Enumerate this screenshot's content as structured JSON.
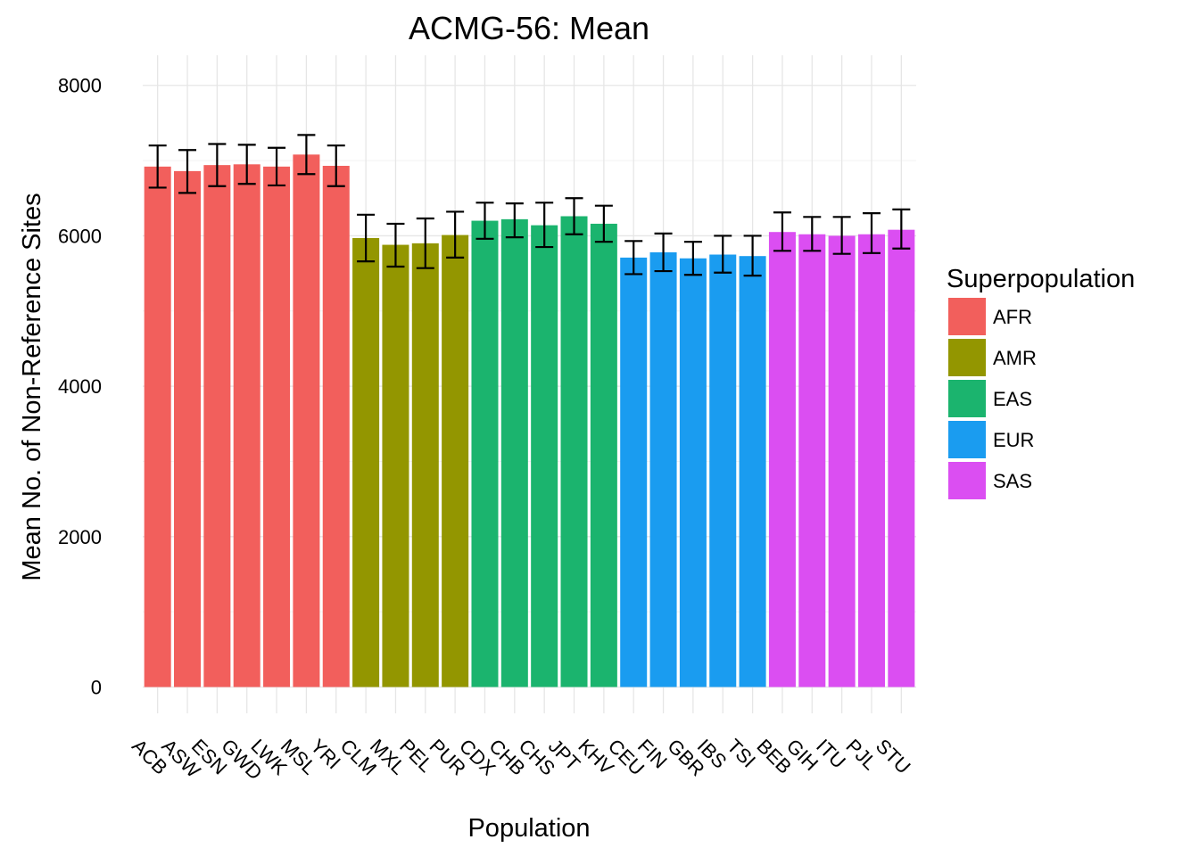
{
  "chart_data": {
    "type": "bar",
    "title": "ACMG-56: Mean",
    "xlabel": "Population",
    "ylabel": "Mean No. of Non-Reference Sites",
    "ylim": [
      -350,
      8400
    ],
    "yticks": [
      0,
      2000,
      4000,
      6000,
      8000
    ],
    "grid": true,
    "legend": {
      "title": "Superpopulation",
      "position": "right",
      "entries": [
        "AFR",
        "AMR",
        "EAS",
        "EUR",
        "SAS"
      ]
    },
    "colors": {
      "AFR": "#F25F5C",
      "AMR": "#939600",
      "EAS": "#1BB46E",
      "EUR": "#1A9CF0",
      "SAS": "#DB4EF2"
    },
    "categories": [
      "ACB",
      "ASW",
      "ESN",
      "GWD",
      "LWK",
      "MSL",
      "YRI",
      "CLM",
      "MXL",
      "PEL",
      "PUR",
      "CDX",
      "CHB",
      "CHS",
      "JPT",
      "KHV",
      "CEU",
      "FIN",
      "GBR",
      "IBS",
      "TSI",
      "BEB",
      "GIH",
      "ITU",
      "PJL",
      "STU"
    ],
    "superpopulation": [
      "AFR",
      "AFR",
      "AFR",
      "AFR",
      "AFR",
      "AFR",
      "AFR",
      "AMR",
      "AMR",
      "AMR",
      "AMR",
      "EAS",
      "EAS",
      "EAS",
      "EAS",
      "EAS",
      "EUR",
      "EUR",
      "EUR",
      "EUR",
      "EUR",
      "SAS",
      "SAS",
      "SAS",
      "SAS",
      "SAS"
    ],
    "values": [
      6920,
      6860,
      6940,
      6950,
      6920,
      7080,
      6930,
      5970,
      5880,
      5900,
      6010,
      6200,
      6220,
      6140,
      6260,
      6160,
      5710,
      5780,
      5700,
      5750,
      5730,
      6050,
      6020,
      6000,
      6020,
      6080
    ],
    "error_low": [
      6640,
      6570,
      6660,
      6690,
      6670,
      6820,
      6660,
      5660,
      5590,
      5570,
      5710,
      5960,
      5980,
      5850,
      6020,
      5920,
      5490,
      5530,
      5480,
      5510,
      5470,
      5800,
      5800,
      5760,
      5770,
      5830
    ],
    "error_high": [
      7200,
      7140,
      7220,
      7210,
      7170,
      7340,
      7200,
      6280,
      6160,
      6230,
      6320,
      6440,
      6430,
      6440,
      6500,
      6400,
      5930,
      6030,
      5920,
      6000,
      6000,
      6310,
      6250,
      6250,
      6300,
      6350
    ]
  }
}
